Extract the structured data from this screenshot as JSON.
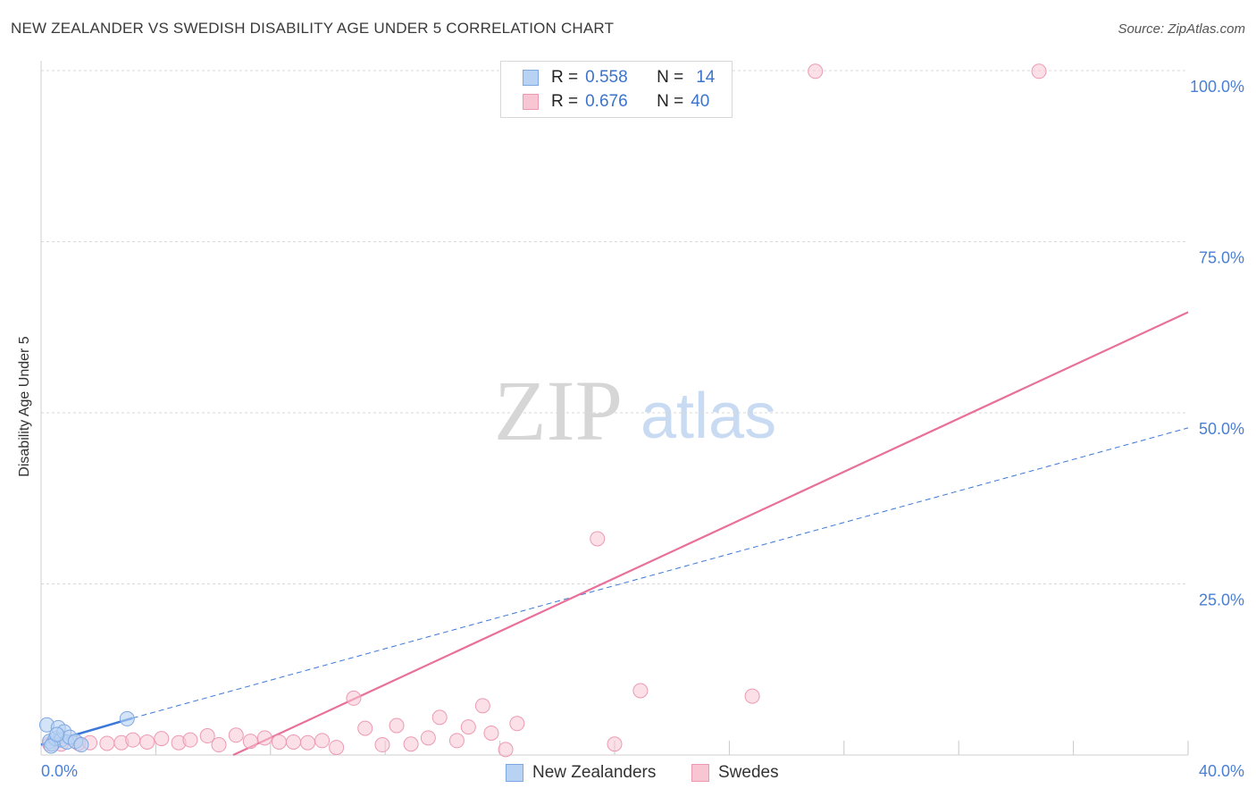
{
  "title": "NEW ZEALANDER VS SWEDISH DISABILITY AGE UNDER 5 CORRELATION CHART",
  "source": "Source: ZipAtlas.com",
  "watermark": {
    "zip": "ZIP",
    "atlas": "atlas"
  },
  "colors": {
    "blue_fill": "#b8d2f4",
    "blue_stroke": "#7ea6e0",
    "blue_line": "#3c78d8",
    "pink_fill": "#f8c6d3",
    "pink_stroke": "#ec9ab2",
    "pink_line": "#e8709a",
    "grid": "#d8d8d8",
    "tick_text": "#4a7fd4"
  },
  "legend": {
    "rows": [
      {
        "r_label": "R =",
        "r_value": "0.558",
        "n_label": "N =",
        "n_value": "14"
      },
      {
        "r_label": "R =",
        "r_value": "0.676",
        "n_label": "N =",
        "n_value": "40"
      }
    ]
  },
  "bottom_legend": {
    "series1": "New Zealanders",
    "series2": "Swedes"
  },
  "chart_data": {
    "type": "scatter",
    "title": "NEW ZEALANDER VS SWEDISH DISABILITY AGE UNDER 5 CORRELATION CHART",
    "xlabel": "",
    "ylabel": "Disability Age Under 5",
    "xlim": [
      0,
      40
    ],
    "ylim": [
      0,
      100
    ],
    "x_tick_labels": [
      "0.0%",
      "40.0%"
    ],
    "y_ticks": [
      25,
      50,
      75,
      100
    ],
    "y_tick_labels": [
      "25.0%",
      "50.0%",
      "75.0%",
      "100.0%"
    ],
    "series": [
      {
        "name": "New Zealanders",
        "r": 0.558,
        "n": 14,
        "points": [
          [
            0.2,
            4.4
          ],
          [
            0.3,
            2.0
          ],
          [
            0.4,
            1.6
          ],
          [
            0.5,
            2.4
          ],
          [
            0.6,
            4.0
          ],
          [
            0.7,
            2.2
          ],
          [
            0.8,
            3.4
          ],
          [
            0.9,
            1.9
          ],
          [
            1.0,
            2.6
          ],
          [
            1.2,
            2.0
          ],
          [
            1.4,
            1.5
          ],
          [
            0.35,
            1.3
          ],
          [
            0.55,
            3.0
          ],
          [
            3.0,
            5.3
          ]
        ],
        "trend_solid": {
          "x": [
            0.0,
            3.2
          ],
          "y": [
            1.5,
            5.4
          ]
        },
        "trend_dashed": {
          "x": [
            3.2,
            40.0
          ],
          "y": [
            5.4,
            47.8
          ]
        }
      },
      {
        "name": "Swedes",
        "r": 0.676,
        "n": 40,
        "points": [
          [
            0.3,
            1.6
          ],
          [
            0.7,
            1.6
          ],
          [
            1.3,
            1.7
          ],
          [
            1.7,
            1.8
          ],
          [
            2.3,
            1.7
          ],
          [
            2.8,
            1.8
          ],
          [
            3.2,
            2.2
          ],
          [
            3.7,
            1.9
          ],
          [
            4.2,
            2.4
          ],
          [
            4.8,
            1.8
          ],
          [
            5.2,
            2.2
          ],
          [
            5.8,
            2.8
          ],
          [
            6.2,
            1.5
          ],
          [
            6.8,
            2.9
          ],
          [
            7.3,
            2.0
          ],
          [
            7.8,
            2.5
          ],
          [
            8.3,
            1.9
          ],
          [
            8.8,
            1.9
          ],
          [
            9.3,
            1.8
          ],
          [
            9.8,
            2.1
          ],
          [
            10.3,
            1.1
          ],
          [
            10.9,
            8.3
          ],
          [
            11.3,
            3.9
          ],
          [
            11.9,
            1.5
          ],
          [
            12.4,
            4.3
          ],
          [
            12.9,
            1.6
          ],
          [
            13.5,
            2.5
          ],
          [
            13.9,
            5.5
          ],
          [
            14.5,
            2.1
          ],
          [
            14.9,
            4.1
          ],
          [
            15.4,
            7.2
          ],
          [
            15.7,
            3.2
          ],
          [
            16.2,
            0.8
          ],
          [
            16.6,
            4.6
          ],
          [
            19.4,
            31.6
          ],
          [
            20.0,
            1.6
          ],
          [
            20.9,
            9.4
          ],
          [
            24.8,
            8.6
          ],
          [
            27.0,
            99.9
          ],
          [
            34.8,
            99.9
          ]
        ],
        "trend": {
          "x": [
            6.7,
            40.0
          ],
          "y": [
            0.0,
            64.7
          ]
        }
      }
    ],
    "legend_position": "top-center",
    "grid": true
  }
}
